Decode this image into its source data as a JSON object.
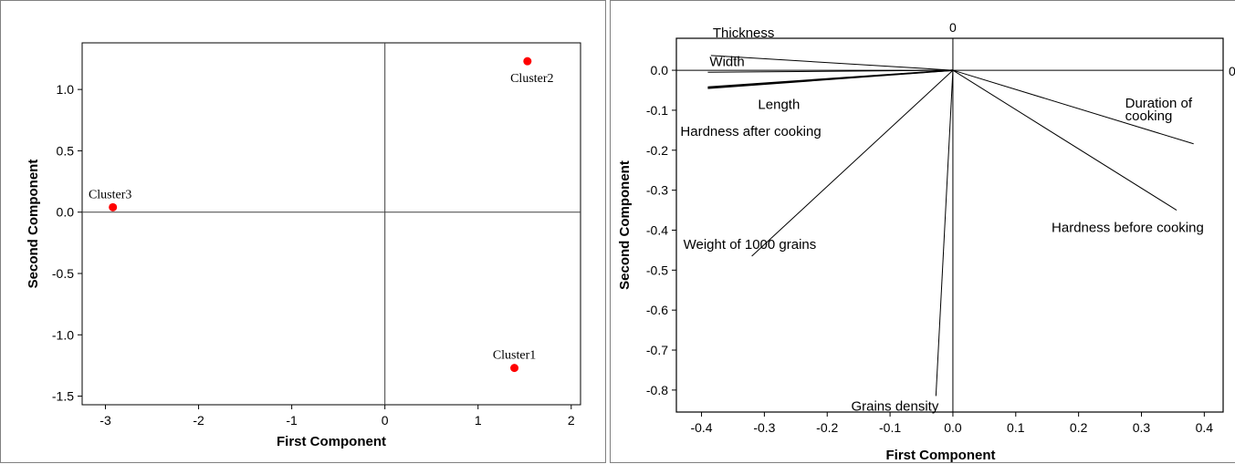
{
  "colors": {
    "point": "#ff0000",
    "line": "#000000",
    "frame": "#000000"
  },
  "chart_data": [
    {
      "type": "scatter",
      "title": "",
      "xlabel": "First Component",
      "ylabel": "Second Component",
      "xlim": [
        -3.25,
        2.1
      ],
      "ylim": [
        -1.57,
        1.38
      ],
      "xticks": [
        -3,
        -2,
        -1,
        0,
        1,
        2
      ],
      "xtick_labels": [
        "-3",
        "-2",
        "-1",
        "0",
        "1",
        "2"
      ],
      "yticks": [
        -1.5,
        -1.0,
        -0.5,
        0.0,
        0.5,
        1.0
      ],
      "ytick_labels": [
        "-1.5",
        "-1.0",
        "-0.5",
        "0.0",
        "0.5",
        "1.0"
      ],
      "reference_lines": {
        "x": 0,
        "y": 0
      },
      "points": [
        {
          "label": "Cluster1",
          "x": 1.39,
          "y": -1.27
        },
        {
          "label": "Cluster2",
          "x": 1.53,
          "y": 1.23
        },
        {
          "label": "Cluster3",
          "x": -2.92,
          "y": 0.04
        }
      ]
    },
    {
      "type": "loading-plot",
      "title": "",
      "xlabel": "First Component",
      "ylabel": "Second Component",
      "xlim": [
        -0.44,
        0.43
      ],
      "ylim": [
        -0.855,
        0.08
      ],
      "xticks": [
        -0.4,
        -0.3,
        -0.2,
        -0.1,
        0.0,
        0.1,
        0.2,
        0.3,
        0.4
      ],
      "xtick_labels": [
        "-0.4",
        "-0.3",
        "-0.2",
        "-0.1",
        "0.0",
        "0.1",
        "0.2",
        "0.3",
        "0.4"
      ],
      "yticks": [
        0.0,
        -0.1,
        -0.2,
        -0.3,
        -0.4,
        -0.5,
        -0.6,
        -0.7,
        -0.8
      ],
      "ytick_labels": [
        "0.0",
        "-0.1",
        "-0.2",
        "-0.3",
        "-0.4",
        "-0.5",
        "-0.6",
        "-0.7",
        "-0.8"
      ],
      "reference_labels": {
        "top": "0",
        "right": "0"
      },
      "vectors": [
        {
          "label": "Thickness",
          "x": -0.385,
          "y": 0.037
        },
        {
          "label": "Width",
          "x": -0.39,
          "y": -0.005
        },
        {
          "label": "Length",
          "x": -0.39,
          "y": -0.042
        },
        {
          "label": "Hardness after cooking",
          "x": -0.39,
          "y": -0.045
        },
        {
          "label": "Weight of 1000 grains",
          "x": -0.32,
          "y": -0.465
        },
        {
          "label": "Grains density",
          "x": -0.027,
          "y": -0.815
        },
        {
          "label": "Duration of cooking",
          "x": 0.383,
          "y": -0.184
        },
        {
          "label": "Hardness before cooking",
          "x": 0.356,
          "y": -0.35
        }
      ]
    }
  ]
}
